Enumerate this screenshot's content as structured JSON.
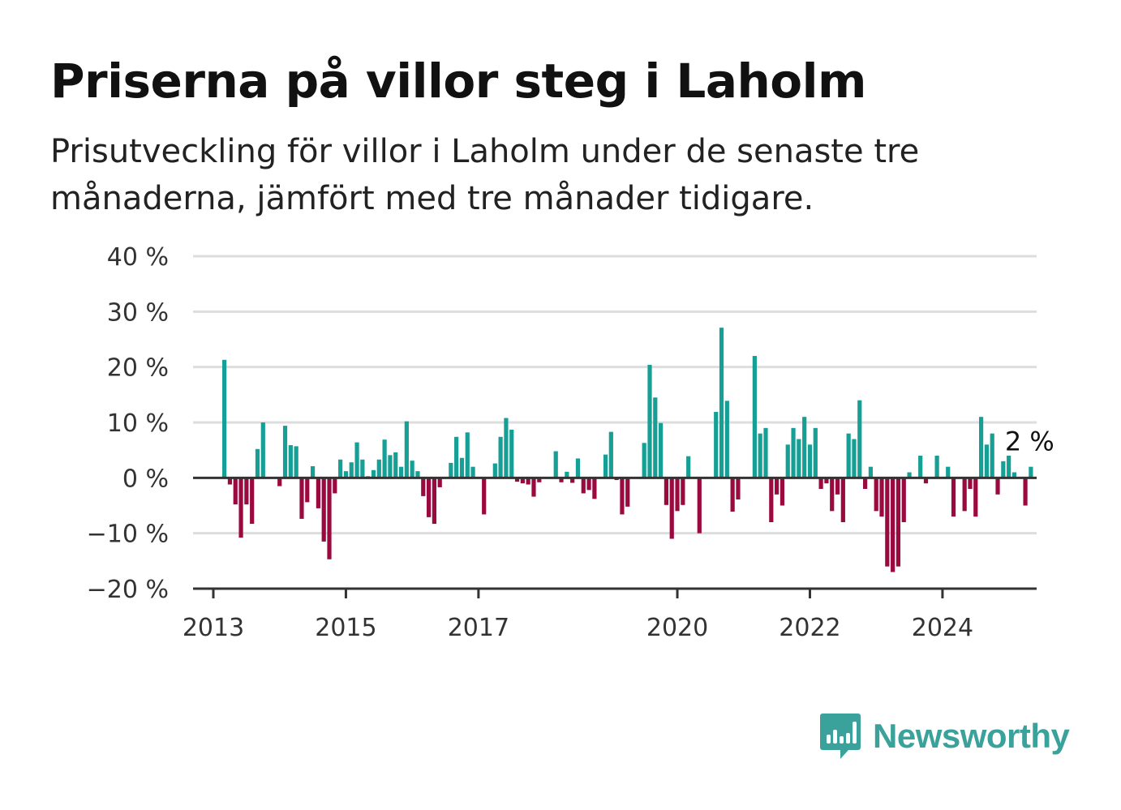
{
  "title": "Priserna på villor steg i Laholm",
  "subtitle": "Prisutveckling för villor i Laholm under de senaste tre månaderna, jämfört med tre månader tidigare.",
  "brand": {
    "name": "Newsworthy",
    "color": "#3aa29a"
  },
  "colors": {
    "positive": "#169f95",
    "negative": "#9b0a3e",
    "grid": "#dddddd",
    "axis": "#333333"
  },
  "chart_data": {
    "type": "bar",
    "title": "Priserna på villor steg i Laholm",
    "ylabel": "",
    "xlabel": "",
    "ylim": [
      -20,
      40
    ],
    "yticks": [
      40,
      30,
      20,
      10,
      0,
      -10,
      -20
    ],
    "ytick_labels": [
      "40 %",
      "30 %",
      "20 %",
      "10 %",
      "0 %",
      "−10 %",
      "−20 %"
    ],
    "xticks": [
      {
        "year": 2013,
        "label": "2013"
      },
      {
        "year": 2015,
        "label": "2015"
      },
      {
        "year": 2017,
        "label": "2017"
      },
      {
        "year": 2020,
        "label": "2020"
      },
      {
        "year": 2022,
        "label": "2022"
      },
      {
        "year": 2024,
        "label": "2024"
      }
    ],
    "start": "2013-03",
    "values": [
      21.3,
      -1.2,
      -4.8,
      -10.8,
      -4.8,
      -8.3,
      5.2,
      10.0,
      null,
      null,
      -1.5,
      9.4,
      5.9,
      5.7,
      -7.4,
      -4.4,
      2.1,
      -5.5,
      -11.5,
      -14.7,
      -2.8,
      3.3,
      1.2,
      2.8,
      6.4,
      3.3,
      0.3,
      1.4,
      3.3,
      6.9,
      4.1,
      4.6,
      2.0,
      10.2,
      3.1,
      1.2,
      -3.3,
      -7.1,
      -8.3,
      -1.7,
      null,
      2.7,
      7.4,
      3.6,
      8.2,
      2.0,
      null,
      -6.6,
      null,
      2.6,
      7.4,
      10.8,
      8.7,
      -0.7,
      -1.0,
      -1.2,
      -3.4,
      -0.8,
      null,
      null,
      4.8,
      -0.8,
      1.1,
      -0.9,
      3.5,
      -2.8,
      -2.2,
      -3.8,
      null,
      4.2,
      8.3,
      -0.4,
      -6.6,
      -5.2,
      null,
      null,
      6.3,
      20.4,
      14.5,
      9.9,
      -4.9,
      -11.0,
      -6.0,
      -4.9,
      3.9,
      null,
      -10.0,
      null,
      null,
      11.9,
      27.1,
      13.9,
      -6.1,
      -3.9,
      null,
      null,
      22.0,
      8.0,
      9.0,
      -8.0,
      -3.0,
      -5.0,
      6.0,
      9.0,
      7.0,
      11.0,
      6.0,
      9.0,
      -2.0,
      -1.0,
      -6.0,
      -3.0,
      -8.0,
      8.0,
      7.0,
      14.0,
      -2.0,
      2.0,
      -6.0,
      -7.0,
      -16.0,
      -17.0,
      -16.0,
      -8.0,
      1.0,
      null,
      4.0,
      -1.0,
      null,
      4.0,
      null,
      2.0,
      -7.0,
      null,
      -6.0,
      -2.0,
      -7.0,
      11.0,
      6.0,
      8.0,
      -3.0,
      3.0,
      4.0,
      1.0,
      null,
      -5.0,
      2.0
    ],
    "annotation": {
      "text": "2 %",
      "index": 146
    }
  }
}
